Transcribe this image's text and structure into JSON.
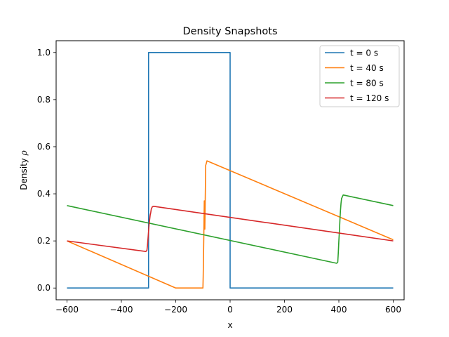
{
  "chart_data": {
    "type": "line",
    "title": "Density Snapshots",
    "xlabel": "x",
    "ylabel_prefix": "Density ",
    "ylabel_symbol": "ρ",
    "xlim": [
      -640,
      640
    ],
    "ylim": [
      -0.05,
      1.05
    ],
    "x_ticks": [
      -600,
      -400,
      -200,
      0,
      200,
      400,
      600
    ],
    "x_tick_labels": [
      "−600",
      "−400",
      "−200",
      "0",
      "200",
      "400",
      "600"
    ],
    "y_ticks": [
      0.0,
      0.2,
      0.4,
      0.6,
      0.8,
      1.0
    ],
    "y_tick_labels": [
      "0.0",
      "0.2",
      "0.4",
      "0.6",
      "0.8",
      "1.0"
    ],
    "grid": false,
    "legend_position": "top-right",
    "series": [
      {
        "name": "t = 0 s",
        "color": "#1f77b4",
        "x": [
          -600,
          -300,
          -300,
          0,
          0,
          600
        ],
        "y": [
          0.0,
          0.0,
          1.0,
          1.0,
          0.0,
          0.0
        ]
      },
      {
        "name": "t = 40 s",
        "color": "#ff7f0e",
        "x": [
          -600,
          -200,
          -100,
          -99,
          -97,
          -95,
          -93,
          -91,
          -90,
          -85,
          600
        ],
        "y": [
          0.2,
          0.0,
          0.0,
          0.05,
          0.2,
          0.37,
          0.25,
          0.42,
          0.52,
          0.54,
          0.205
        ]
      },
      {
        "name": "t = 80 s",
        "color": "#2ca02c",
        "x": [
          -600,
          392,
          396,
          398,
          400,
          402,
          404,
          406,
          408,
          410,
          416,
          600
        ],
        "y": [
          0.35,
          0.105,
          0.11,
          0.15,
          0.2,
          0.24,
          0.29,
          0.33,
          0.36,
          0.38,
          0.395,
          0.35
        ]
      },
      {
        "name": "t = 120 s",
        "color": "#d62728",
        "x": [
          -600,
          -310,
          -306,
          -304,
          -302,
          -300,
          -298,
          -296,
          -294,
          -292,
          -290,
          -286,
          -282,
          600
        ],
        "y": [
          0.2,
          0.155,
          0.16,
          0.18,
          0.21,
          0.24,
          0.27,
          0.29,
          0.31,
          0.32,
          0.335,
          0.345,
          0.347,
          0.2
        ]
      }
    ]
  }
}
